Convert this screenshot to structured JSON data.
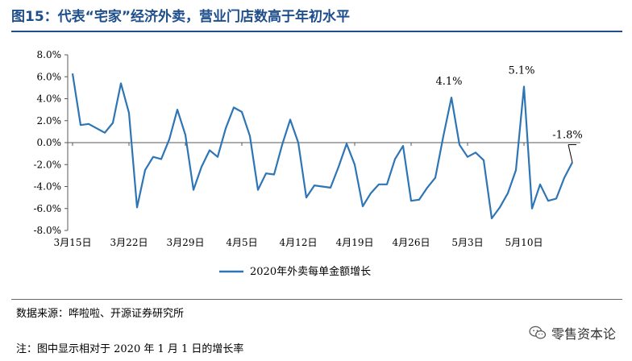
{
  "header": {
    "title": "图15：代表“宅家”经济外卖，营业门店数高于年初水平"
  },
  "footer": {
    "source": "数据来源：哗啦啦、开源证券研究所",
    "note": "注：图中显示相对于 2020 年 1 月 1 日的增长率",
    "watermark_text": "零售资本论"
  },
  "colors": {
    "series": "#2e75b6",
    "title": "#1f4e8c",
    "axis": "#595959"
  },
  "icons": {
    "watermark": "wechat-icon"
  },
  "chart_data": {
    "type": "line",
    "title": "",
    "xlabel": "",
    "ylabel": "",
    "ylim": [
      -8.0,
      8.0
    ],
    "yticks": [
      "8.0%",
      "6.0%",
      "4.0%",
      "2.0%",
      "0.0%",
      "-2.0%",
      "-4.0%",
      "-6.0%",
      "-8.0%"
    ],
    "ytick_values": [
      8,
      6,
      4,
      2,
      0,
      -2,
      -4,
      -6,
      -8
    ],
    "xtick_labels": [
      "3月15日",
      "3月22日",
      "3月29日",
      "4月5日",
      "4月12日",
      "4月19日",
      "4月26日",
      "5月3日",
      "5月10日"
    ],
    "xtick_dates": [
      "2020-03-15",
      "2020-03-22",
      "2020-03-29",
      "2020-04-05",
      "2020-04-12",
      "2020-04-19",
      "2020-04-26",
      "2020-05-03",
      "2020-05-10"
    ],
    "legend_position": "bottom-center",
    "grid": false,
    "x": [
      "2020-03-15",
      "2020-03-16",
      "2020-03-17",
      "2020-03-18",
      "2020-03-19",
      "2020-03-20",
      "2020-03-21",
      "2020-03-22",
      "2020-03-23",
      "2020-03-24",
      "2020-03-25",
      "2020-03-26",
      "2020-03-27",
      "2020-03-28",
      "2020-03-29",
      "2020-03-30",
      "2020-03-31",
      "2020-04-01",
      "2020-04-02",
      "2020-04-03",
      "2020-04-04",
      "2020-04-05",
      "2020-04-06",
      "2020-04-07",
      "2020-04-08",
      "2020-04-09",
      "2020-04-10",
      "2020-04-11",
      "2020-04-12",
      "2020-04-13",
      "2020-04-14",
      "2020-04-15",
      "2020-04-16",
      "2020-04-17",
      "2020-04-18",
      "2020-04-19",
      "2020-04-20",
      "2020-04-21",
      "2020-04-22",
      "2020-04-23",
      "2020-04-24",
      "2020-04-25",
      "2020-04-26",
      "2020-04-27",
      "2020-04-28",
      "2020-04-29",
      "2020-04-30",
      "2020-05-01",
      "2020-05-02",
      "2020-05-03",
      "2020-05-04",
      "2020-05-05",
      "2020-05-06",
      "2020-05-07",
      "2020-05-08",
      "2020-05-09",
      "2020-05-10",
      "2020-05-11",
      "2020-05-12",
      "2020-05-13",
      "2020-05-14",
      "2020-05-15",
      "2020-05-16"
    ],
    "series": [
      {
        "name": "2020年外卖每单金额增长",
        "values": [
          6.3,
          1.6,
          1.7,
          1.3,
          0.9,
          1.8,
          5.4,
          2.7,
          -5.9,
          -2.5,
          -1.3,
          -1.5,
          0.3,
          3.0,
          0.7,
          -4.3,
          -2.2,
          -0.7,
          -1.3,
          1.3,
          3.2,
          2.8,
          0.6,
          -4.3,
          -2.8,
          -2.9,
          -0.2,
          2.1,
          0.0,
          -5.0,
          -3.9,
          -4.0,
          -4.1,
          -2.2,
          -0.1,
          -2.0,
          -5.8,
          -4.6,
          -3.8,
          -3.8,
          -1.5,
          -0.3,
          -5.3,
          -5.2,
          -4.1,
          -3.2,
          0.6,
          4.1,
          -0.2,
          -1.3,
          -0.9,
          -1.6,
          -6.9,
          -5.9,
          -4.6,
          -2.5,
          5.1,
          -6.0,
          -3.8,
          -5.3,
          -5.1,
          -3.2,
          -1.8
        ]
      }
    ],
    "annotations": [
      {
        "label": "4.1%",
        "x": "2020-05-01",
        "y": 4.1
      },
      {
        "label": "5.1%",
        "x": "2020-05-10",
        "y": 5.1
      },
      {
        "label": "-1.8%",
        "x": "2020-05-16",
        "y": -1.8
      }
    ]
  }
}
